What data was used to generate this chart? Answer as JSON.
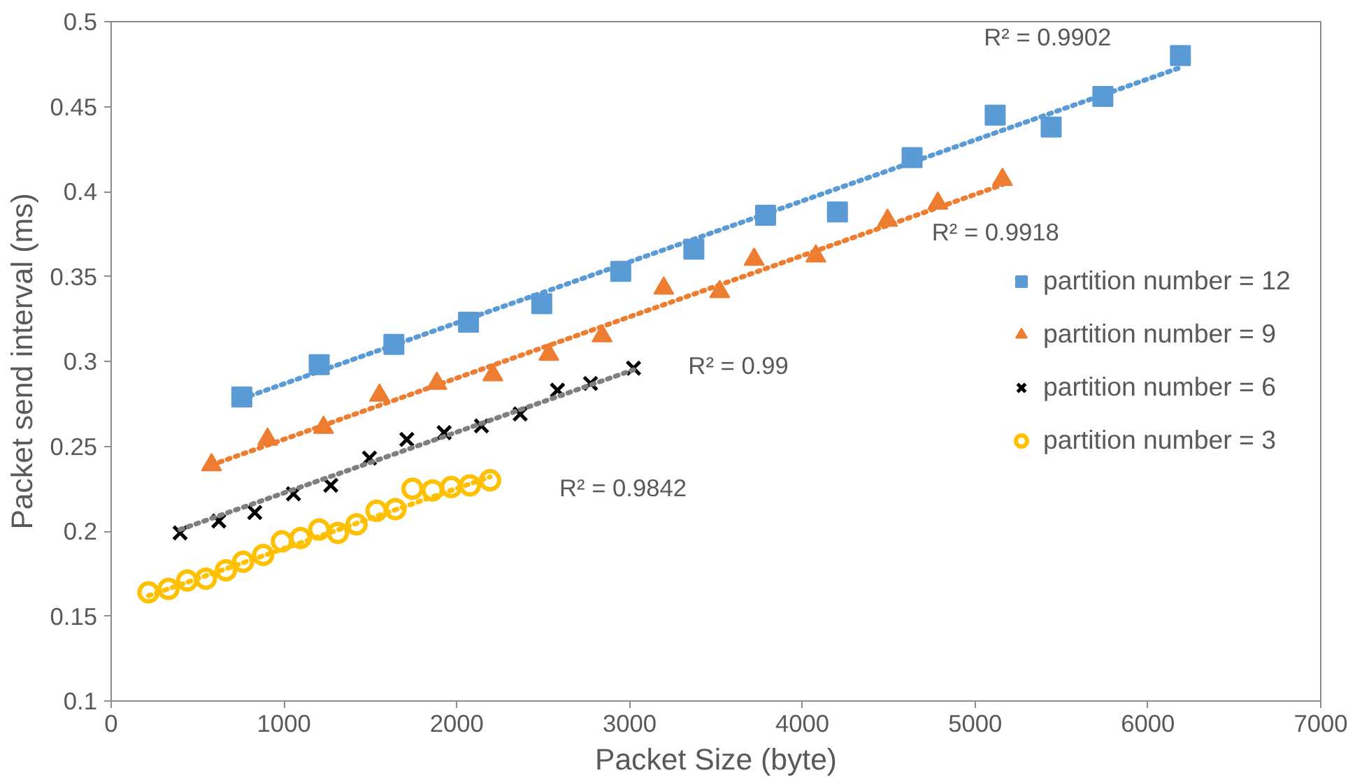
{
  "chart_data": {
    "type": "scatter",
    "xlabel": "Packet Size (byte)",
    "ylabel": "Packet send interval (ms)",
    "xlim": [
      0,
      7000
    ],
    "ylim": [
      0.1,
      0.5
    ],
    "xticks": [
      0,
      1000,
      2000,
      3000,
      4000,
      5000,
      6000,
      7000
    ],
    "yticks": [
      0.1,
      0.15,
      0.2,
      0.25,
      0.3,
      0.35,
      0.4,
      0.45,
      0.5
    ],
    "grid": false,
    "legend": "right",
    "series": [
      {
        "name": "partition number = 12",
        "color": "#5b9bd5",
        "marker": "square",
        "x": [
          756,
          1204,
          1636,
          2068,
          2492,
          2949,
          3372,
          3787,
          4203,
          4635,
          5116,
          5440,
          5739,
          6188
        ],
        "values": [
          0.279,
          0.298,
          0.31,
          0.323,
          0.334,
          0.353,
          0.366,
          0.386,
          0.388,
          0.42,
          0.445,
          0.438,
          0.456,
          0.48
        ]
      },
      {
        "name": "partition number = 9",
        "color": "#ed7d31",
        "marker": "triangle",
        "x": [
          581,
          905,
          1229,
          1553,
          1885,
          2209,
          2533,
          2841,
          3198,
          3522,
          3721,
          4078,
          4493,
          4784,
          5158
        ],
        "values": [
          0.239,
          0.254,
          0.261,
          0.28,
          0.287,
          0.292,
          0.304,
          0.315,
          0.343,
          0.341,
          0.36,
          0.362,
          0.383,
          0.393,
          0.407
        ]
      },
      {
        "name": "partition number = 6",
        "color": "#000000",
        "marker": "cross",
        "x": [
          399,
          623,
          831,
          1055,
          1271,
          1495,
          1711,
          1927,
          2143,
          2367,
          2583,
          2774,
          3023
        ],
        "values": [
          0.199,
          0.206,
          0.211,
          0.222,
          0.227,
          0.243,
          0.254,
          0.258,
          0.262,
          0.269,
          0.283,
          0.287,
          0.296
        ]
      },
      {
        "name": "partition number = 3",
        "color": "#ffc000",
        "marker": "circle",
        "x": [
          216,
          332,
          440,
          548,
          664,
          764,
          880,
          988,
          1096,
          1204,
          1312,
          1420,
          1536,
          1645,
          1744,
          1860,
          1968,
          2076,
          2193
        ],
        "values": [
          0.164,
          0.166,
          0.171,
          0.172,
          0.177,
          0.182,
          0.186,
          0.194,
          0.196,
          0.201,
          0.199,
          0.204,
          0.212,
          0.213,
          0.225,
          0.224,
          0.226,
          0.227,
          0.23
        ]
      },
      {
        "type": "line",
        "line_style": "dotted",
        "color": "#5b9bd5",
        "x": [
          756,
          6188
        ],
        "values": [
          0.278,
          0.473
        ]
      },
      {
        "type": "line",
        "line_style": "dotted",
        "color": "#ed7d31",
        "x": [
          581,
          5158
        ],
        "values": [
          0.239,
          0.404
        ]
      },
      {
        "type": "line",
        "line_style": "dotted",
        "color": "#7f7f7f",
        "x": [
          399,
          3023
        ],
        "values": [
          0.201,
          0.295
        ]
      },
      {
        "type": "line",
        "line_style": "dotted",
        "color": "#ffc000",
        "x": [
          216,
          2193
        ],
        "values": [
          0.162,
          0.232
        ]
      }
    ],
    "annotations": [
      "R² = 0.9902",
      "R² = 0.9918",
      "R² = 0.99",
      "R² = 0.9842"
    ]
  }
}
